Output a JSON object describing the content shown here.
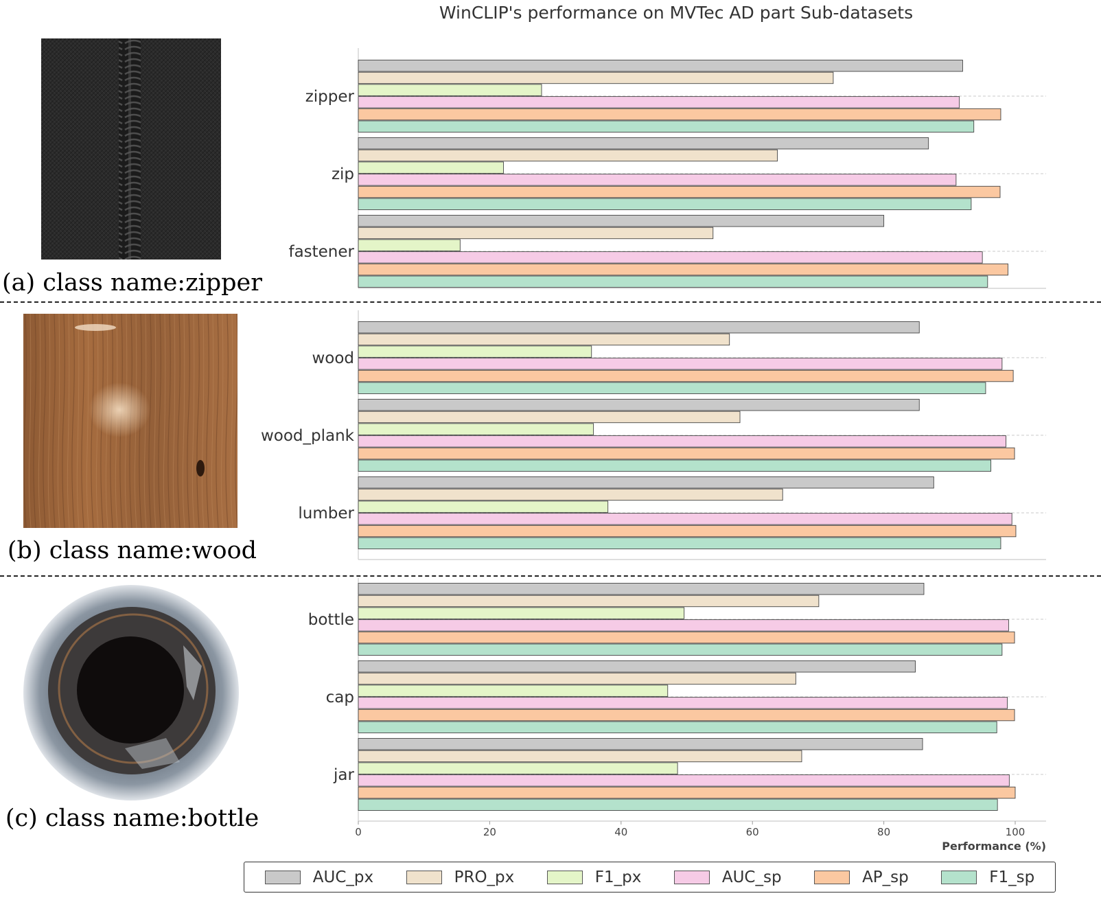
{
  "captions": {
    "a": "(a) class name:zipper",
    "b": "(b) class name:wood",
    "c": "(c) class name:bottle"
  },
  "chart_data": {
    "type": "bar",
    "orientation": "horizontal",
    "title": "WinCLIP's performance on MVTec AD part Sub-datasets",
    "xlabel": "Performance (%)",
    "ylabel": "",
    "xlim": [
      0,
      105
    ],
    "xticks": [
      "0",
      "20",
      "40",
      "60",
      "80",
      "100"
    ],
    "grid": "dashed horizontal at categories",
    "legend_position": "bottom",
    "series_names": [
      "AUC_px",
      "PRO_px",
      "F1_px",
      "AUC_sp",
      "AP_sp",
      "F1_sp"
    ],
    "series_colors": [
      "#c9c9c9",
      "#f0e2cc",
      "#e4f5c8",
      "#f6cbe6",
      "#fbc8a1",
      "#b4e2cc"
    ],
    "groups": [
      {
        "label": "(a) class name:zipper",
        "categories": [
          "zipper",
          "zip",
          "fastener"
        ],
        "values": [
          [
            92.0,
            72.3,
            27.9,
            91.5,
            97.8,
            93.7
          ],
          [
            86.8,
            63.8,
            22.1,
            91.0,
            97.7,
            93.3
          ],
          [
            80.0,
            54.0,
            15.5,
            95.0,
            98.9,
            95.8
          ]
        ]
      },
      {
        "label": "(b) class name:wood",
        "categories": [
          "wood",
          "wood_plank",
          "lumber"
        ],
        "values": [
          [
            85.4,
            56.5,
            35.5,
            98.0,
            99.7,
            95.5
          ],
          [
            85.4,
            58.1,
            35.8,
            98.6,
            99.9,
            96.3
          ],
          [
            87.6,
            64.6,
            38.0,
            99.5,
            100.1,
            97.8
          ]
        ]
      },
      {
        "label": "(c) class name:bottle",
        "categories": [
          "bottle",
          "cap",
          "jar"
        ],
        "values": [
          [
            86.1,
            70.1,
            49.6,
            99.0,
            99.9,
            98.0
          ],
          [
            84.8,
            66.6,
            47.1,
            98.8,
            99.9,
            97.2
          ],
          [
            85.9,
            67.5,
            48.6,
            99.1,
            100.0,
            97.3
          ]
        ]
      }
    ]
  }
}
